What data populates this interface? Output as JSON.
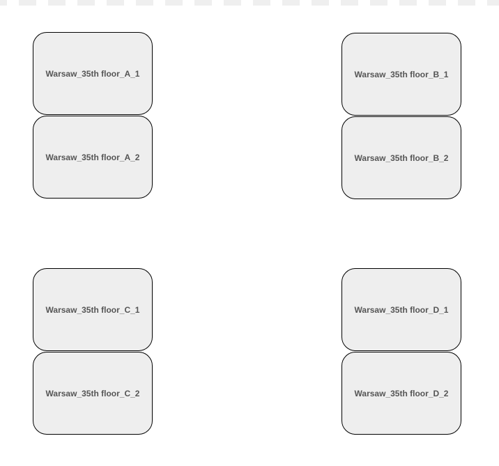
{
  "rooms": {
    "a1": "Warsaw_35th floor_A_1",
    "a2": "Warsaw_35th floor_A_2",
    "b1": "Warsaw_35th floor_B_1",
    "b2": "Warsaw_35th floor_B_2",
    "c1": "Warsaw_35th floor_C_1",
    "c2": "Warsaw_35th floor_C_2",
    "d1": "Warsaw_35th floor_D_1",
    "d2": "Warsaw_35th floor_D_2"
  },
  "colors": {
    "room_fill": "#eeeeee",
    "room_border": "#000000",
    "label_text": "#555555",
    "background": "#ffffff"
  }
}
